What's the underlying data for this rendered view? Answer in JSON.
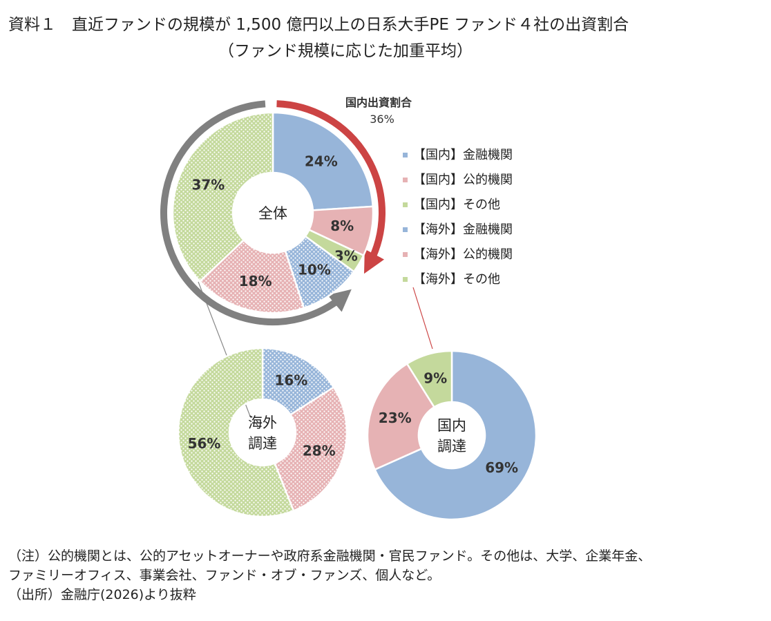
{
  "page": {
    "title_line1": "資料１　直近ファンドの規模が 1,500 億円以上の日系大手PE ファンド４社の出資割合",
    "title_line2": "（ファンド規模に応じた加重平均）"
  },
  "chart_data": [
    {
      "type": "pie",
      "center_label": "全体",
      "slices": [
        {
          "label": "【国内】金融機関",
          "value": 24
        },
        {
          "label": "【国内】公的機関",
          "value": 8
        },
        {
          "label": "【国内】その他",
          "value": 3
        },
        {
          "label": "【海外】金融機関",
          "value": 10
        },
        {
          "label": "【海外】公的機関",
          "value": 18
        },
        {
          "label": "【海外】その他",
          "value": 37
        }
      ],
      "annotation_title": "国内出資割合",
      "annotation_value": "36%",
      "legend_position": "right"
    },
    {
      "type": "pie",
      "center_label": [
        "海外",
        "調達"
      ],
      "slices": [
        {
          "label": "【海外】金融機関",
          "value": 16
        },
        {
          "label": "【海外】公的機関",
          "value": 28
        },
        {
          "label": "【海外】その他",
          "value": 56
        }
      ]
    },
    {
      "type": "pie",
      "center_label": [
        "国内",
        "調達"
      ],
      "slices": [
        {
          "label": "【国内】金融機関",
          "value": 69
        },
        {
          "label": "【国内】公的機関",
          "value": 23
        },
        {
          "label": "【国内】その他",
          "value": 9
        }
      ]
    }
  ],
  "colors": {
    "domestic_financial": "#97b5d9",
    "domestic_public": "#e6b2b4",
    "domestic_other": "#c4d99c",
    "overseas_financial": "#97b5d9",
    "overseas_public": "#e6b2b4",
    "overseas_other": "#c4d99c",
    "arrow_red": "#cc4444",
    "arrow_gray": "#808080"
  },
  "notes": [
    "（注）公的機関とは、公的アセットオーナーや政府系金融機関・官民ファンド。その他は、大学、企業年金、",
    "ファミリーオフィス、事業会社、ファンド・オブ・ファンズ、個人など。",
    "（出所）金融庁(2026)より抜粋"
  ]
}
